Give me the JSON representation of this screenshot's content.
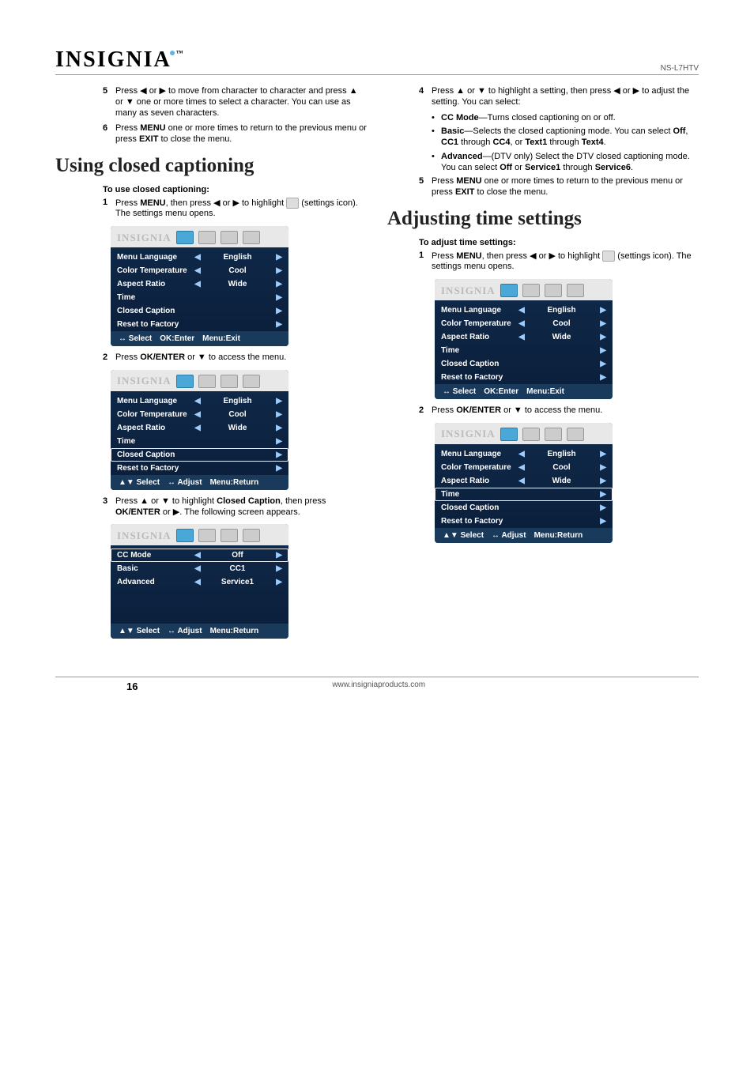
{
  "header": {
    "logo": "INSIGNIA",
    "model": "NS-L7HTV"
  },
  "left": {
    "intro_steps": [
      {
        "n": "5",
        "html": "Press ◀ or ▶ to move from character to character and press ▲ or ▼ one or more times to select a character. You can use as many as seven characters."
      },
      {
        "n": "6",
        "html": "Press <b>MENU</b> one or more times to return to the previous menu or press <b>EXIT</b> to close the menu."
      }
    ],
    "section_title": "Using closed captioning",
    "sub1": "To use closed captioning:",
    "step1": {
      "n": "1",
      "html": "Press <b>MENU</b>, then press ◀ or ▶ to highlight <span class='settings-icon'></span> (settings icon). The settings menu opens."
    },
    "step2": {
      "n": "2",
      "html": "Press <b>OK/ENTER</b> or ▼ to access the menu."
    },
    "step3": {
      "n": "3",
      "html": "Press ▲ or ▼ to highlight <b>Closed Caption</b>, then press <b>OK/ENTER</b> or ▶. The following screen appears."
    }
  },
  "right": {
    "step4": {
      "n": "4",
      "html": "Press ▲ or ▼ to highlight a setting, then press ◀ or ▶ to adjust the setting. You can select:"
    },
    "bullets": [
      "<b>CC Mode</b>—Turns closed captioning on or off.",
      "<b>Basic</b>—Selects the closed captioning mode. You can select <b>Off</b>, <b>CC1</b> through <b>CC4</b>, or <b>Text1</b> through <b>Text4</b>.",
      "<b>Advanced</b>—(DTV only) Select the DTV closed captioning mode. You can select <b>Off</b> or <b>Service1</b> through <b>Service6</b>."
    ],
    "step5": {
      "n": "5",
      "html": "Press <b>MENU</b> one or more times to return to the previous menu or press <b>EXIT</b> to close the menu."
    },
    "section_title": "Adjusting time settings",
    "sub1": "To adjust time settings:",
    "t_step1": {
      "n": "1",
      "html": "Press <b>MENU</b>, then press ◀ or ▶ to highlight <span class='settings-icon'></span> (settings icon). The settings menu opens."
    },
    "t_step2": {
      "n": "2",
      "html": "Press <b>OK/ENTER</b> or ▼ to access the menu."
    }
  },
  "menus": {
    "settings": {
      "rows": [
        {
          "label": "Menu Language",
          "value": "English",
          "left": true,
          "right": true
        },
        {
          "label": "Color Temperature",
          "value": "Cool",
          "left": true,
          "right": true
        },
        {
          "label": "Aspect Ratio",
          "value": "Wide",
          "left": true,
          "right": true
        },
        {
          "label": "Time",
          "value": "",
          "left": false,
          "right": true
        },
        {
          "label": "Closed Caption",
          "value": "",
          "left": false,
          "right": true
        },
        {
          "label": "Reset to Factory",
          "value": "",
          "left": false,
          "right": true
        }
      ],
      "footer": [
        "↔ Select",
        "OK:Enter",
        "Menu:Exit"
      ]
    },
    "settings_adjust_footer": [
      "▲▼ Select",
      "↔ Adjust",
      "Menu:Return"
    ],
    "cc": {
      "rows": [
        {
          "label": "CC Mode",
          "value": "Off",
          "left": true,
          "right": true,
          "hl": true
        },
        {
          "label": "Basic",
          "value": "CC1",
          "left": true,
          "right": true
        },
        {
          "label": "Advanced",
          "value": "Service1",
          "left": true,
          "right": true
        }
      ],
      "footer": [
        "▲▼ Select",
        "↔ Adjust",
        "Menu:Return"
      ]
    }
  },
  "footer": {
    "page": "16",
    "url": "www.insigniaproducts.com"
  }
}
